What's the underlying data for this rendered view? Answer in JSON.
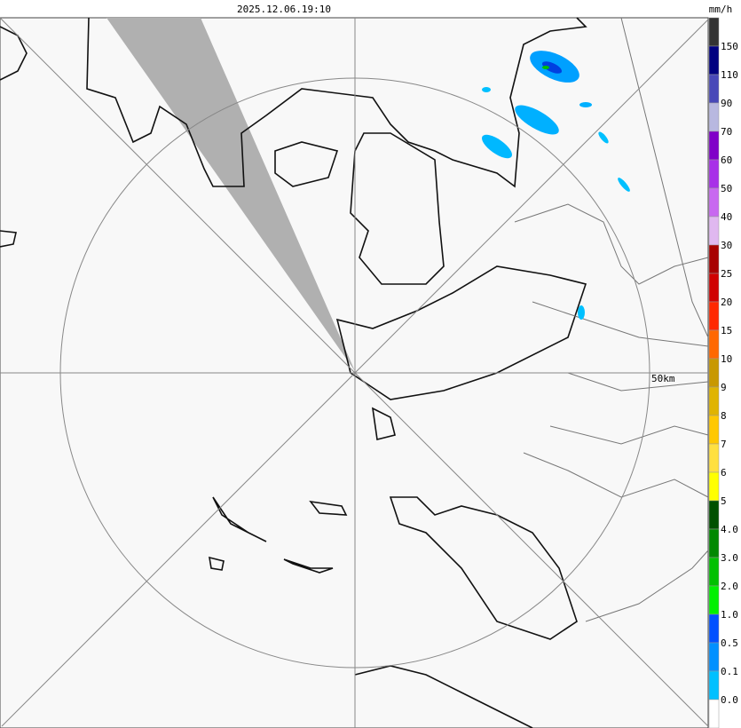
{
  "header": {
    "timestamp": "2025.12.06.19:10",
    "unit": "mm/h"
  },
  "map": {
    "range_label": "50km"
  },
  "legend": {
    "colors": [
      "#333333",
      "#000080",
      "#4848b8",
      "#b8b8e0",
      "#8000c8",
      "#a830e8",
      "#c868f0",
      "#e0b8f0",
      "#a80000",
      "#d00000",
      "#ff2800",
      "#ff6800",
      "#c89800",
      "#e0b400",
      "#ffc800",
      "#ffe040",
      "#ffff00",
      "#005000",
      "#008800",
      "#00c000",
      "#00f000",
      "#0050ff",
      "#0090ff",
      "#00c0ff",
      "#ffffff"
    ],
    "labels": [
      "150",
      "110",
      "90",
      "70",
      "60",
      "50",
      "40",
      "30",
      "25",
      "20",
      "15",
      "10",
      "9",
      "8",
      "7",
      "6",
      "5",
      "4.0",
      "3.0",
      "2.0",
      "1.0",
      "0.5",
      "0.1",
      "0.0"
    ]
  }
}
